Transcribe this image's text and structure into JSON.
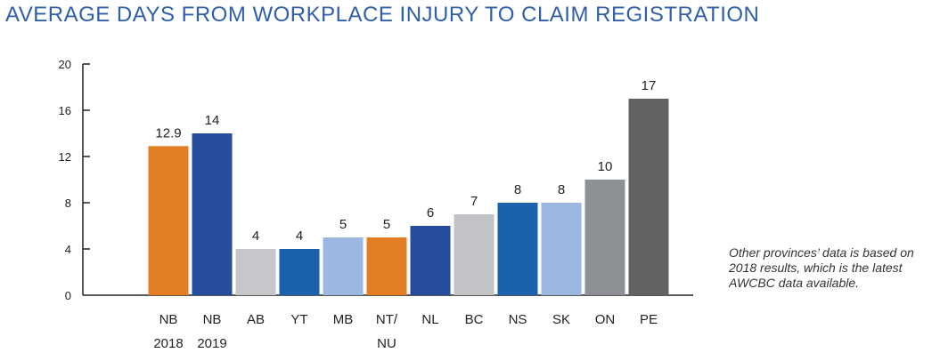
{
  "title": "AVERAGE DAYS FROM WORKPLACE INJURY TO CLAIM REGISTRATION",
  "note": "Other provinces’ data is based on 2018 results, which is the latest AWCBC data available.",
  "chart_data": {
    "type": "bar",
    "title": "AVERAGE DAYS FROM WORKPLACE INJURY TO CLAIM REGISTRATION",
    "xlabel": "",
    "ylabel": "",
    "ylim": [
      0,
      20
    ],
    "yticks": [
      "0",
      "4",
      "8",
      "12",
      "16",
      "20"
    ],
    "grid": false,
    "categories": [
      [
        "NB",
        "2018"
      ],
      [
        "NB",
        "2019"
      ],
      [
        "AB"
      ],
      [
        "YT"
      ],
      [
        "MB"
      ],
      [
        "NT/",
        "NU"
      ],
      [
        "NL"
      ],
      [
        "BC"
      ],
      [
        "NS"
      ],
      [
        "SK"
      ],
      [
        "ON"
      ],
      [
        "PE"
      ]
    ],
    "values": [
      12.9,
      14,
      4,
      4,
      5,
      5,
      6,
      7,
      8,
      8,
      10,
      17
    ],
    "value_labels": [
      "12.9",
      "14",
      "4",
      "4",
      "5",
      "5",
      "6",
      "7",
      "8",
      "8",
      "10",
      "17"
    ],
    "colors": [
      "#e47e24",
      "#264c9c",
      "#c6c7cb",
      "#1b62ad",
      "#9ab8e1",
      "#e47e24",
      "#264c9c",
      "#c2c3c7",
      "#1b62ad",
      "#9ab8e1",
      "#8d9196",
      "#626262"
    ]
  }
}
